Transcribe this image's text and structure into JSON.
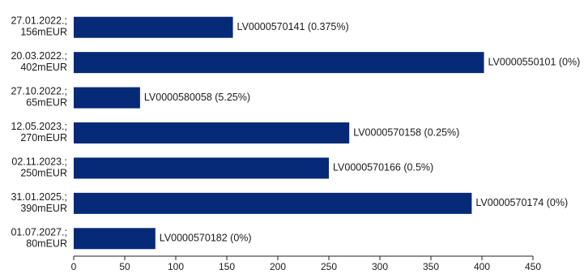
{
  "chart_data": {
    "type": "bar",
    "orientation": "horizontal",
    "categories": [
      [
        "27.01.2022.;",
        "156mEUR"
      ],
      [
        "20.03.2022.;",
        "402mEUR"
      ],
      [
        "27.10.2022.;",
        "65mEUR"
      ],
      [
        "12.05.2023.;",
        "270mEUR"
      ],
      [
        "02.11.2023.;",
        "250mEUR"
      ],
      [
        "31.01.2025.;",
        "390mEUR"
      ],
      [
        "01.07.2027.;",
        "80mEUR"
      ]
    ],
    "values": [
      156,
      402,
      65,
      270,
      250,
      390,
      80
    ],
    "bar_labels": [
      "LV0000570141 (0.375%)",
      "LV0000550101 (0%)",
      "LV0000580058 (5.25%)",
      "LV0000570158 (0.25%)",
      "LV0000570166 (0.5%)",
      "LV0000570174 (0%)",
      "LV0000570182 (0%)"
    ],
    "xlim": [
      0,
      450
    ],
    "xticks": [
      0,
      50,
      100,
      150,
      200,
      250,
      300,
      350,
      400,
      450
    ],
    "title": "",
    "xlabel": "",
    "ylabel": "",
    "grid": false,
    "legend": "none",
    "bar_color": "#062a78"
  }
}
